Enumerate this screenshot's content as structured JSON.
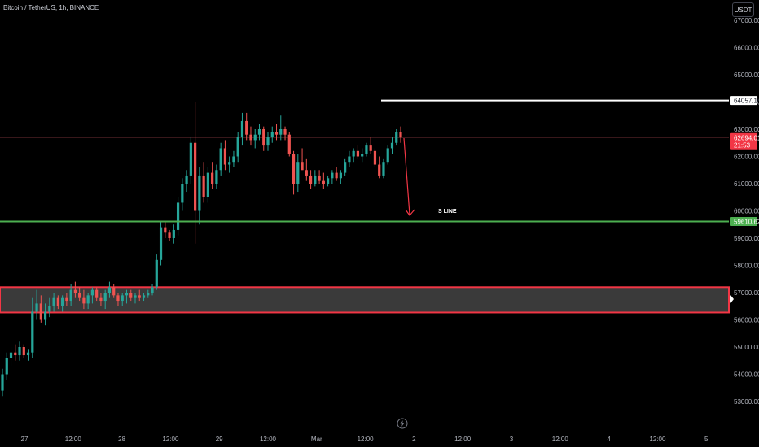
{
  "header": {
    "title": "Bitcoin / TetherUS, 1h, BINANCE",
    "currency_button": "USDT"
  },
  "colors": {
    "up": "#26a69a",
    "down": "#ef5350",
    "support": "#4caf50",
    "zone_border": "#f23645",
    "zone_fill": "#3a3a3a",
    "resistance": "#ffffff",
    "arrow": "#f23645"
  },
  "icons": {
    "timezone": "lightning-icon",
    "scale": "chevron-right-icon"
  },
  "chart_data": {
    "type": "candlestick",
    "ylim": [
      52000,
      67500
    ],
    "y_ticks": [
      "53000.00",
      "54000.00",
      "55000.00",
      "56000.00",
      "57000.00",
      "58000.00",
      "59000.00",
      "60000.00",
      "61000.00",
      "62000.00",
      "63000.00",
      "64000.00",
      "65000.00",
      "66000.00",
      "67000.00"
    ],
    "x_ticks": [
      "27",
      "12:00",
      "28",
      "12:00",
      "29",
      "12:00",
      "Mar",
      "12:00",
      "2",
      "12:00",
      "3",
      "12:00",
      "4",
      "12:00",
      "5"
    ],
    "candles": [
      [
        53400,
        54200,
        53200,
        54000
      ],
      [
        54000,
        54800,
        53800,
        54600
      ],
      [
        54600,
        55000,
        54300,
        54800
      ],
      [
        54800,
        55100,
        54500,
        54700
      ],
      [
        54700,
        55200,
        54500,
        55000
      ],
      [
        55000,
        55100,
        54600,
        54700
      ],
      [
        54700,
        54900,
        54500,
        54800
      ],
      [
        54800,
        56800,
        54600,
        56300
      ],
      [
        56300,
        57100,
        56000,
        56600
      ],
      [
        56600,
        56900,
        55900,
        56000
      ],
      [
        56000,
        56600,
        55800,
        56300
      ],
      [
        56300,
        56800,
        56100,
        56500
      ],
      [
        56500,
        57000,
        56300,
        56800
      ],
      [
        56800,
        56900,
        56400,
        56500
      ],
      [
        56500,
        56900,
        56300,
        56800
      ],
      [
        56800,
        57000,
        56500,
        56700
      ],
      [
        56700,
        57300,
        56500,
        57100
      ],
      [
        57100,
        57400,
        56800,
        57000
      ],
      [
        57000,
        57200,
        56700,
        56800
      ],
      [
        56800,
        57100,
        56400,
        56600
      ],
      [
        56600,
        57000,
        56400,
        56900
      ],
      [
        56900,
        57200,
        56600,
        57100
      ],
      [
        57100,
        57200,
        56700,
        56800
      ],
      [
        56800,
        57000,
        56500,
        56700
      ],
      [
        56700,
        57100,
        56400,
        57000
      ],
      [
        57000,
        57400,
        56800,
        57200
      ],
      [
        57200,
        57300,
        56800,
        56900
      ],
      [
        56900,
        57000,
        56500,
        56700
      ],
      [
        56700,
        57000,
        56500,
        56900
      ],
      [
        56900,
        57100,
        56600,
        57000
      ],
      [
        57000,
        57100,
        56700,
        56800
      ],
      [
        56800,
        57000,
        56600,
        56900
      ],
      [
        56900,
        57100,
        56700,
        56800
      ],
      [
        56800,
        57000,
        56700,
        56900
      ],
      [
        56900,
        57100,
        56800,
        57000
      ],
      [
        57000,
        57300,
        56900,
        57200
      ],
      [
        57200,
        58400,
        57100,
        58200
      ],
      [
        58200,
        59600,
        58000,
        59400
      ],
      [
        59400,
        59600,
        59000,
        59200
      ],
      [
        59200,
        59300,
        58900,
        59000
      ],
      [
        59000,
        59500,
        58800,
        59300
      ],
      [
        59300,
        60500,
        59100,
        60300
      ],
      [
        60300,
        61200,
        60000,
        61000
      ],
      [
        61000,
        61500,
        60700,
        61300
      ],
      [
        61300,
        62700,
        61000,
        62500
      ],
      [
        62500,
        64000,
        58800,
        60000
      ],
      [
        60000,
        61600,
        59500,
        61300
      ],
      [
        61300,
        61800,
        60300,
        60500
      ],
      [
        60500,
        61600,
        60300,
        61400
      ],
      [
        61400,
        61800,
        60800,
        61000
      ],
      [
        61000,
        61700,
        60800,
        61500
      ],
      [
        61500,
        62500,
        61300,
        62300
      ],
      [
        62300,
        62600,
        61500,
        61700
      ],
      [
        61700,
        62000,
        61400,
        61800
      ],
      [
        61800,
        62200,
        61600,
        62000
      ],
      [
        62000,
        62900,
        61800,
        62700
      ],
      [
        62700,
        63600,
        62400,
        63300
      ],
      [
        63300,
        63600,
        62600,
        62800
      ],
      [
        62800,
        63100,
        62400,
        62600
      ],
      [
        62600,
        63000,
        62300,
        62800
      ],
      [
        62800,
        63200,
        62600,
        63000
      ],
      [
        63000,
        63100,
        62200,
        62400
      ],
      [
        62400,
        62900,
        62200,
        62700
      ],
      [
        62700,
        63100,
        62500,
        62900
      ],
      [
        62900,
        63200,
        62600,
        62800
      ],
      [
        62800,
        63500,
        62600,
        63000
      ],
      [
        63000,
        63100,
        62600,
        62800
      ],
      [
        62800,
        62900,
        62000,
        62100
      ],
      [
        62100,
        62200,
        60600,
        61000
      ],
      [
        61000,
        62100,
        60700,
        61800
      ],
      [
        61800,
        62300,
        61500,
        61500
      ],
      [
        61500,
        61900,
        61100,
        61300
      ],
      [
        61300,
        61500,
        60800,
        61000
      ],
      [
        61000,
        61500,
        60900,
        61300
      ],
      [
        61300,
        61500,
        61000,
        61100
      ],
      [
        61100,
        61400,
        60800,
        61000
      ],
      [
        61000,
        61300,
        60900,
        61200
      ],
      [
        61200,
        61500,
        61000,
        61400
      ],
      [
        61400,
        61600,
        61100,
        61200
      ],
      [
        61200,
        61500,
        61000,
        61400
      ],
      [
        61400,
        61900,
        61300,
        61800
      ],
      [
        61800,
        62200,
        61600,
        62000
      ],
      [
        62000,
        62300,
        61800,
        62200
      ],
      [
        62200,
        62400,
        61900,
        62000
      ],
      [
        62000,
        62300,
        61800,
        62100
      ],
      [
        62100,
        62500,
        62000,
        62400
      ],
      [
        62400,
        62700,
        62100,
        62200
      ],
      [
        62200,
        62300,
        61600,
        61700
      ],
      [
        61700,
        62000,
        61200,
        61300
      ],
      [
        61300,
        61900,
        61200,
        61800
      ],
      [
        61800,
        62400,
        61700,
        62300
      ],
      [
        62300,
        62700,
        62100,
        62500
      ],
      [
        62500,
        63000,
        62400,
        62900
      ],
      [
        62900,
        63100,
        62500,
        62694
      ]
    ],
    "last_price": "62694.01",
    "countdown": "21:53",
    "levels": [
      {
        "name": "resistance",
        "value": 64057.16,
        "label": "64057.16"
      },
      {
        "name": "s-line",
        "value": 59610.62,
        "label": "59610.62",
        "annotation": "S LINE"
      }
    ],
    "zone": {
      "top": 57200,
      "bottom": 56270
    }
  }
}
